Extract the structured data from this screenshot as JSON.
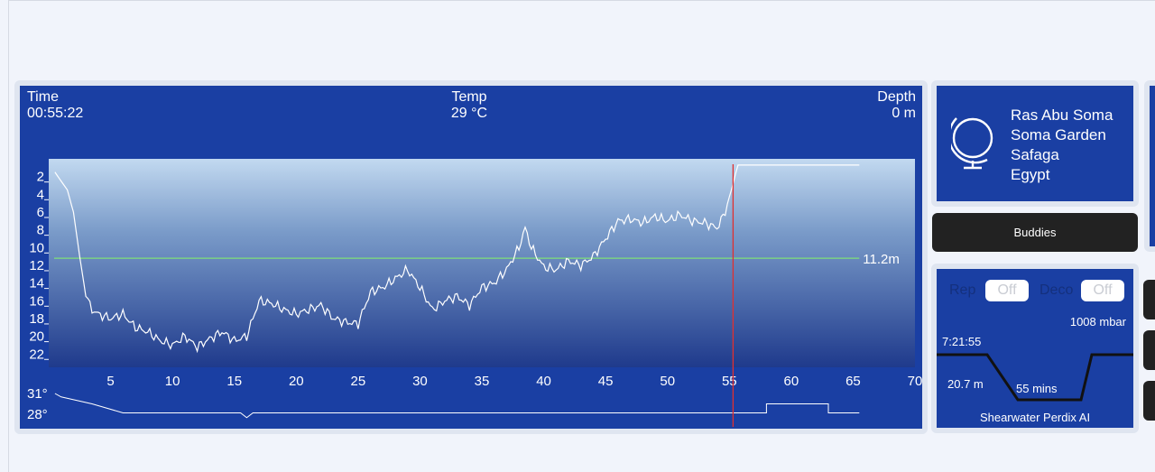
{
  "header": {
    "time_label": "Time",
    "time_value": "00:55:22",
    "temp_label": "Temp",
    "temp_value": "29 °C",
    "depth_label": "Depth",
    "depth_value": "0 m"
  },
  "chart_data": {
    "type": "line",
    "x_unit": "minutes",
    "xlim": [
      0,
      70
    ],
    "x_ticks": [
      5,
      10,
      15,
      20,
      25,
      30,
      35,
      40,
      45,
      50,
      55,
      60,
      65,
      70
    ],
    "y_ticks": [
      2,
      4,
      6,
      8,
      10,
      12,
      14,
      16,
      18,
      20,
      22
    ],
    "ylim": [
      23.5,
      0
    ],
    "depth_profile": [
      [
        0.5,
        1.5
      ],
      [
        1,
        2.5
      ],
      [
        1.5,
        3.5
      ],
      [
        2,
        6
      ],
      [
        2.5,
        11
      ],
      [
        3,
        15.5
      ],
      [
        3.5,
        17
      ],
      [
        4,
        17.5
      ],
      [
        5,
        18
      ],
      [
        6,
        17.5
      ],
      [
        7,
        19
      ],
      [
        8,
        19.5
      ],
      [
        9,
        20.5
      ],
      [
        10,
        21
      ],
      [
        11,
        20
      ],
      [
        12,
        21.2
      ],
      [
        13,
        20.3
      ],
      [
        14,
        19.5
      ],
      [
        15,
        20.5
      ],
      [
        16,
        20
      ],
      [
        17,
        16
      ],
      [
        18,
        16.3
      ],
      [
        19,
        17
      ],
      [
        20,
        17.5
      ],
      [
        21,
        17
      ],
      [
        22,
        16.5
      ],
      [
        23,
        18
      ],
      [
        24,
        18.4
      ],
      [
        25,
        18.6
      ],
      [
        26,
        15
      ],
      [
        27,
        14.5
      ],
      [
        28,
        13.5
      ],
      [
        29,
        12.5
      ],
      [
        30,
        14.5
      ],
      [
        31,
        17
      ],
      [
        32,
        16
      ],
      [
        33,
        15.5
      ],
      [
        34,
        16.5
      ],
      [
        35,
        14.5
      ],
      [
        36,
        14
      ],
      [
        37,
        12.5
      ],
      [
        38,
        10
      ],
      [
        38.5,
        7.8
      ],
      [
        39,
        10
      ],
      [
        40,
        12.2
      ],
      [
        41,
        12.5
      ],
      [
        42,
        11.5
      ],
      [
        43,
        12
      ],
      [
        44,
        11
      ],
      [
        45,
        9
      ],
      [
        46,
        7
      ],
      [
        47,
        6.8
      ],
      [
        48,
        7.2
      ],
      [
        49,
        6.5
      ],
      [
        50,
        7
      ],
      [
        51,
        6.3
      ],
      [
        52,
        7
      ],
      [
        53,
        7.2
      ],
      [
        54,
        7.8
      ],
      [
        54.5,
        6.5
      ],
      [
        55,
        4.5
      ],
      [
        55.5,
        1.7
      ],
      [
        55.7,
        0.7
      ],
      [
        65.5,
        0.7
      ]
    ],
    "reference_depth_m": 11.2,
    "reference_label": "11.2m",
    "cursor_minute": 55.3,
    "temp_ticks": [
      "31°",
      "28°"
    ],
    "temperature_profile": [
      [
        0.5,
        31
      ],
      [
        1,
        30.5
      ],
      [
        3.5,
        29.5
      ],
      [
        6,
        28.2
      ],
      [
        15.5,
        28.2
      ],
      [
        16,
        27.5
      ],
      [
        16.5,
        28.2
      ],
      [
        58,
        28.2
      ],
      [
        58,
        29.5
      ],
      [
        63,
        29.5
      ],
      [
        63,
        28.2
      ],
      [
        65.5,
        28.2
      ]
    ]
  },
  "location": {
    "icon": "globe-icon",
    "lines": [
      "Ras Abu Soma",
      "Soma Garden",
      "Safaga",
      "Egypt"
    ]
  },
  "buddies_label": "Buddies",
  "dive_info": {
    "rep_label": "Rep",
    "rep_value": "Off",
    "deco_label": "Deco",
    "deco_value": "Off",
    "pressure": "1008 mbar",
    "entry_time": "7:21:55",
    "max_depth": "20.7 m",
    "duration": "55 mins",
    "computer": "Shearwater Perdix AI"
  },
  "colors": {
    "panel_blue": "#1a3fa3",
    "reference_line": "#7fe07a",
    "cursor_line": "#e03030"
  }
}
